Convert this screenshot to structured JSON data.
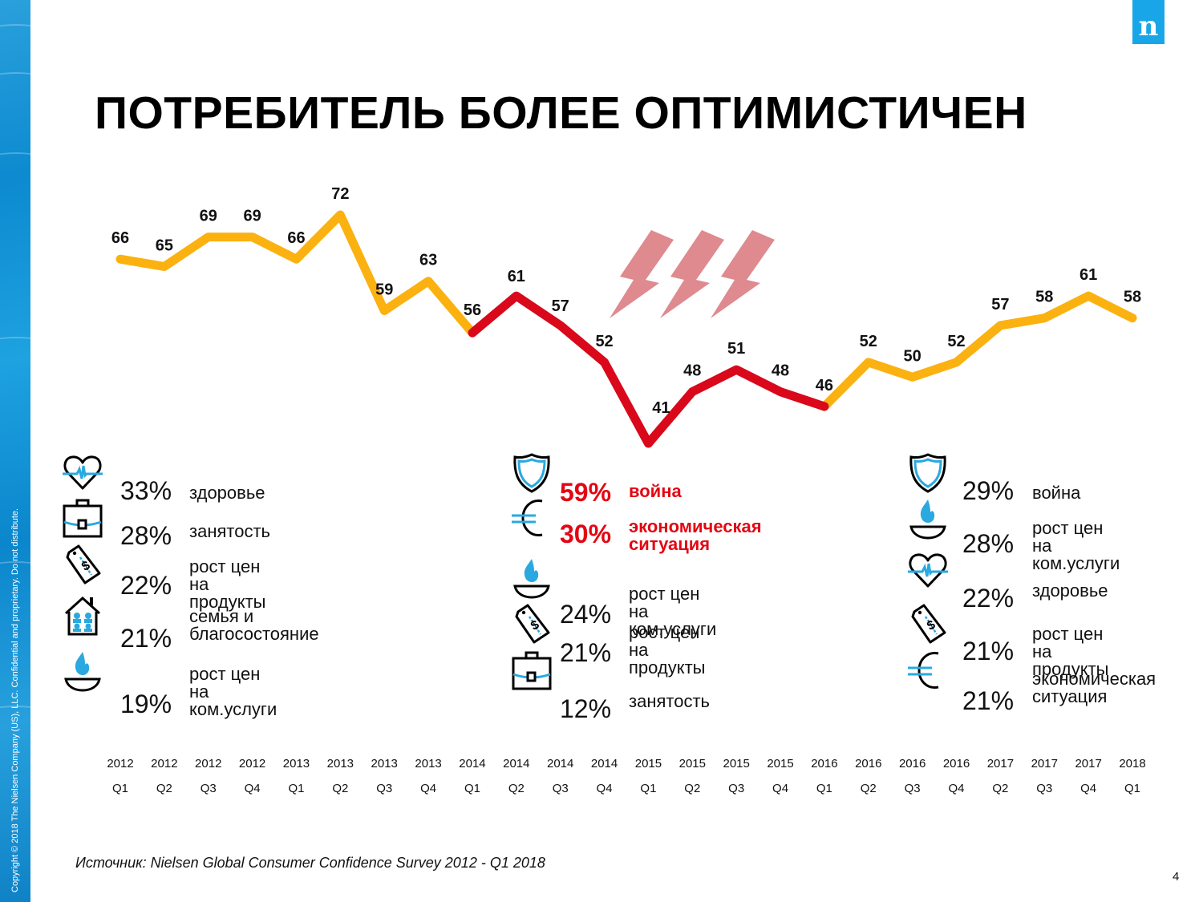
{
  "sidebar": {
    "copyright": "Copyright © 2018 The Nielsen Company (US), LLC. Confidential and proprietary. Do not distribute."
  },
  "logo": {
    "letter": "n",
    "color": "#19a6e8"
  },
  "title": "ПОТРЕБИТЕЛЬ БОЛЕЕ ОПТИМИСТИЧЕН",
  "chart_data": {
    "type": "line",
    "title": "ПОТРЕБИТЕЛЬ БОЛЕЕ ОПТИМИСТИЧЕН",
    "xlabel": "",
    "ylabel": "",
    "grid": false,
    "legend": "none",
    "categories": [
      {
        "year": "2012",
        "quarter": "Q1"
      },
      {
        "year": "2012",
        "quarter": "Q2"
      },
      {
        "year": "2012",
        "quarter": "Q3"
      },
      {
        "year": "2012",
        "quarter": "Q4"
      },
      {
        "year": "2013",
        "quarter": "Q1"
      },
      {
        "year": "2013",
        "quarter": "Q2"
      },
      {
        "year": "2013",
        "quarter": "Q3"
      },
      {
        "year": "2013",
        "quarter": "Q4"
      },
      {
        "year": "2014",
        "quarter": "Q1"
      },
      {
        "year": "2014",
        "quarter": "Q2"
      },
      {
        "year": "2014",
        "quarter": "Q3"
      },
      {
        "year": "2014",
        "quarter": "Q4"
      },
      {
        "year": "2015",
        "quarter": "Q1"
      },
      {
        "year": "2015",
        "quarter": "Q2"
      },
      {
        "year": "2015",
        "quarter": "Q3"
      },
      {
        "year": "2015",
        "quarter": "Q4"
      },
      {
        "year": "2016",
        "quarter": "Q1"
      },
      {
        "year": "2016",
        "quarter": "Q2"
      },
      {
        "year": "2016",
        "quarter": "Q3"
      },
      {
        "year": "2016",
        "quarter": "Q4"
      },
      {
        "year": "2017",
        "quarter": "Q2"
      },
      {
        "year": "2017",
        "quarter": "Q3"
      },
      {
        "year": "2017",
        "quarter": "Q4"
      },
      {
        "year": "2018",
        "quarter": "Q1"
      }
    ],
    "values": [
      66,
      65,
      69,
      69,
      66,
      72,
      59,
      63,
      56,
      61,
      57,
      52,
      41,
      48,
      51,
      48,
      46,
      52,
      50,
      52,
      57,
      58,
      61,
      58
    ],
    "ylim": [
      35,
      78
    ],
    "series_colors": {
      "normal": "#fbb110",
      "crisis": "#d9081a"
    },
    "crisis_range": {
      "start_index": 8,
      "end_index": 16
    },
    "annotation": {
      "type": "lightning-bolts",
      "count": 3,
      "color": "#de8a8f"
    }
  },
  "panels": [
    {
      "items": [
        {
          "icon": "heart-pulse-icon",
          "pct": "33%",
          "label": "здоровье",
          "highlight": false
        },
        {
          "icon": "briefcase-icon",
          "pct": "28%",
          "label": "занятость",
          "highlight": false
        },
        {
          "icon": "price-tag-icon",
          "pct": "22%",
          "label": "рост цен на\nпродукты",
          "highlight": false
        },
        {
          "icon": "house-family-icon",
          "pct": "21%",
          "label": "семья и\nблагосостояние",
          "highlight": false
        },
        {
          "icon": "gas-flame-icon",
          "pct": "19%",
          "label": "рост цен на\nком.услуги",
          "highlight": false
        }
      ]
    },
    {
      "items": [
        {
          "icon": "shield-icon",
          "pct": "59%",
          "label": "война",
          "highlight": true
        },
        {
          "icon": "euro-icon",
          "pct": "30%",
          "label": "экономическая\nситуация",
          "highlight": true
        },
        {
          "icon": "gas-flame-icon",
          "pct": "24%",
          "label": "рост цен на\nком.услуги",
          "highlight": false
        },
        {
          "icon": "price-tag-icon",
          "pct": "21%",
          "label": "рост цен на\nпродукты",
          "highlight": false
        },
        {
          "icon": "briefcase-icon",
          "pct": "12%",
          "label": "занятость",
          "highlight": false
        }
      ]
    },
    {
      "items": [
        {
          "icon": "shield-icon",
          "pct": "29%",
          "label": "война",
          "highlight": false
        },
        {
          "icon": "gas-flame-icon",
          "pct": "28%",
          "label": "рост цен на\nком.услуги",
          "highlight": false
        },
        {
          "icon": "heart-pulse-icon",
          "pct": "22%",
          "label": "здоровье",
          "highlight": false
        },
        {
          "icon": "price-tag-icon",
          "pct": "21%",
          "label": "рост цен на\nпродукты",
          "highlight": false
        },
        {
          "icon": "euro-icon",
          "pct": "21%",
          "label": "экономическая\nситуация",
          "highlight": false
        }
      ]
    }
  ],
  "colors": {
    "icon_accent": "#29a9e0",
    "highlight_red": "#e30613"
  },
  "footer": {
    "source": "Источник: Nielsen Global Consumer Confidence Survey 2012 - Q1 2018",
    "page_number": "4"
  }
}
